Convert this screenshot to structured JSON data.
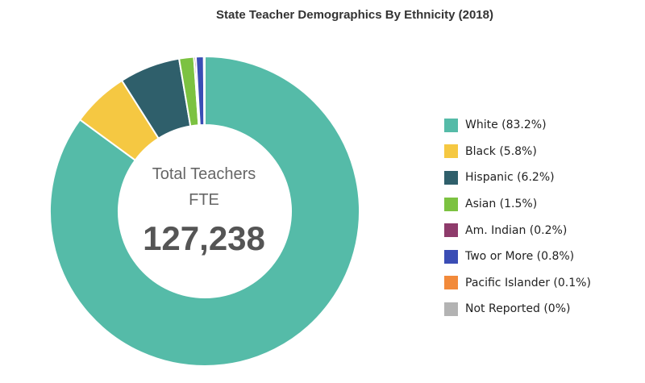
{
  "chart_data": {
    "type": "pie",
    "donut": true,
    "title": "State Teacher Demographics By Ethnicity (2018)",
    "center_label_line1": "Total Teachers",
    "center_label_line2": "FTE",
    "center_total": "127,238",
    "legend_position": "right",
    "slices": [
      {
        "label": "White (83.2%)",
        "category": "White",
        "value": 83.2,
        "color": "#55bba8"
      },
      {
        "label": "Black (5.8%)",
        "category": "Black",
        "value": 5.8,
        "color": "#f5c842"
      },
      {
        "label": "Hispanic (6.2%)",
        "category": "Hispanic",
        "value": 6.2,
        "color": "#2f5f6b"
      },
      {
        "label": "Asian (1.5%)",
        "category": "Asian",
        "value": 1.5,
        "color": "#7cc241"
      },
      {
        "label": "Am. Indian (0.2%)",
        "category": "Am. Indian",
        "value": 0.2,
        "color": "#8e3b6b"
      },
      {
        "label": "Two or More (0.8%)",
        "category": "Two or More",
        "value": 0.8,
        "color": "#3a4db5"
      },
      {
        "label": "Pacific Islander (0.1%)",
        "category": "Pacific Islander",
        "value": 0.1,
        "color": "#f28a3a"
      },
      {
        "label": "Not Reported (0%)",
        "category": "Not Reported",
        "value": 0,
        "color": "#b3b3b3"
      }
    ]
  }
}
